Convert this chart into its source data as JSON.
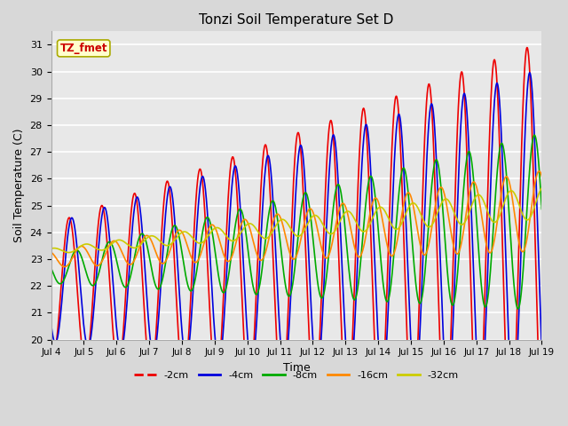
{
  "title": "Tonzi Soil Temperature Set D",
  "xlabel": "Time",
  "ylabel": "Soil Temperature (C)",
  "ylim": [
    20.0,
    31.5
  ],
  "yticks": [
    20.0,
    21.0,
    22.0,
    23.0,
    24.0,
    25.0,
    26.0,
    27.0,
    28.0,
    29.0,
    30.0,
    31.0
  ],
  "bg_outer": "#d8d8d8",
  "bg_plot": "#e8e8e8",
  "grid_color": "#ffffff",
  "label_box_text": "TZ_fmet",
  "label_box_facecolor": "#ffffcc",
  "label_box_edgecolor": "#aaaa00",
  "label_box_textcolor": "#cc0000",
  "series": {
    "-2cm": {
      "color": "#ee0000",
      "lw": 1.2
    },
    "-4cm": {
      "color": "#0000dd",
      "lw": 1.2
    },
    "-8cm": {
      "color": "#00aa00",
      "lw": 1.2
    },
    "-16cm": {
      "color": "#ff8800",
      "lw": 1.2
    },
    "-32cm": {
      "color": "#cccc00",
      "lw": 1.2
    }
  },
  "legend_labels": [
    "-2cm",
    "-4cm",
    "-8cm",
    "-16cm",
    "-32cm"
  ],
  "xtick_labels": [
    "Jul 4",
    "Jul 5",
    "Jul 6",
    "Jul 7",
    "Jul 8",
    "Jul 9",
    "Jul 10",
    "Jul 11",
    "Jul 12",
    "Jul 13",
    "Jul 14",
    "Jul 15",
    "Jul 16",
    "Jul 17",
    "Jul 18",
    "Jul 19"
  ],
  "n_days": 15,
  "samples_per_day": 144,
  "figsize": [
    6.4,
    4.8
  ],
  "dpi": 100
}
